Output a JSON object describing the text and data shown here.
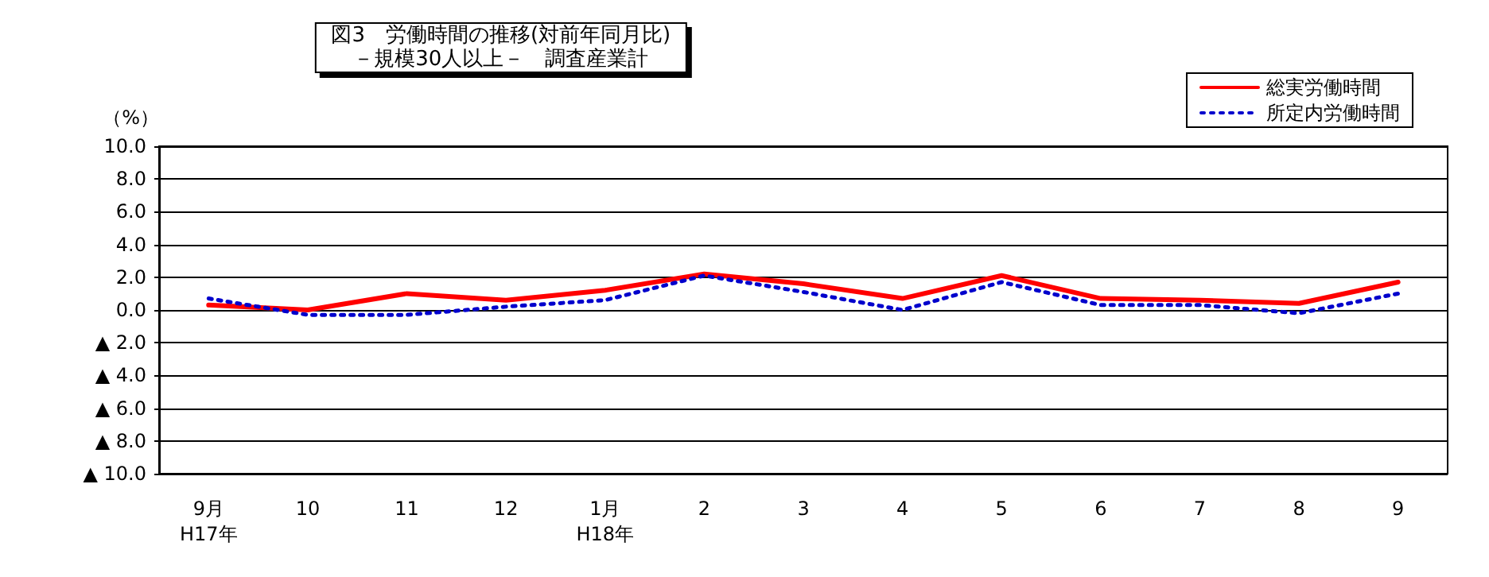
{
  "chart_data": {
    "type": "line",
    "title": "図3　労働時間の推移(対前年同月比)",
    "subtitle": "－規模30人以上－　調査産業計",
    "ylabel": "（%）",
    "categories": [
      "9月\nH17年",
      "10",
      "11",
      "12",
      "1月\nH18年",
      "2",
      "3",
      "4",
      "5",
      "6",
      "7",
      "8",
      "9"
    ],
    "series": [
      {
        "name": "総実労働時間",
        "color": "#ff0000",
        "line_style": "solid",
        "values": [
          0.3,
          0.0,
          1.0,
          0.6,
          1.2,
          2.2,
          1.6,
          0.7,
          2.1,
          0.7,
          0.6,
          0.4,
          1.7
        ]
      },
      {
        "name": "所定内労働時間",
        "color": "#0000cc",
        "line_style": "dotted",
        "values": [
          0.7,
          -0.3,
          -0.3,
          0.2,
          0.6,
          2.1,
          1.1,
          0.0,
          1.7,
          0.3,
          0.3,
          -0.2,
          1.0
        ]
      }
    ],
    "ylim": [
      -10,
      10
    ],
    "yticks": [
      {
        "value": -10,
        "label": "▲ 10.0"
      },
      {
        "value": -8,
        "label": "▲ 8.0"
      },
      {
        "value": -6,
        "label": "▲ 6.0"
      },
      {
        "value": -4,
        "label": "▲ 4.0"
      },
      {
        "value": -2,
        "label": "▲ 2.0"
      },
      {
        "value": 0,
        "label": "0.0"
      },
      {
        "value": 2,
        "label": "2.0"
      },
      {
        "value": 4,
        "label": "4.0"
      },
      {
        "value": 6,
        "label": "6.0"
      },
      {
        "value": 8,
        "label": "8.0"
      },
      {
        "value": 10,
        "label": "10.0"
      }
    ],
    "grid": "y",
    "legend": "top right",
    "marker": "none"
  }
}
